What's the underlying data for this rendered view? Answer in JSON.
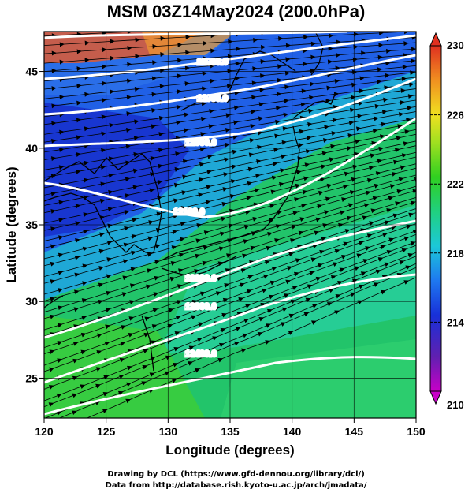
{
  "title": "MSM 03Z14May2024 (200.0hPa)",
  "credits": {
    "line1": "Drawing by DCL (https://www.gfd-dennou.org/library/dcl/)",
    "line2": "Data from http://database.rish.kyoto-u.ac.jp/arch/jmadata/"
  },
  "chart_data": {
    "type": "heatmap",
    "xlabel": "Longitude (degrees)",
    "ylabel": "Latitude  (degrees)",
    "xlim": [
      120,
      150
    ],
    "ylim": [
      22.4,
      47.6
    ],
    "x_ticks": [
      120,
      125,
      130,
      135,
      140,
      145,
      150
    ],
    "y_ticks": [
      25,
      30,
      35,
      40,
      45
    ],
    "grid": true,
    "colorbar": {
      "range": [
        210,
        230
      ],
      "tick_labels": [
        "230",
        "226",
        "222",
        "218",
        "214",
        "210"
      ],
      "tick_values": [
        230,
        226,
        222,
        218,
        214,
        210
      ],
      "colors": [
        "#c800c8",
        "#6020b0",
        "#1830d8",
        "#1e78f0",
        "#1cc8d8",
        "#20d080",
        "#30d020",
        "#a0e020",
        "#f0e020",
        "#f09020",
        "#e03020"
      ]
    },
    "contour_labels": [
      "11800.0",
      "11900.0",
      "12000.0",
      "12100.0",
      "12200.0",
      "12300.0",
      "12400.0"
    ],
    "colors": {
      "contour": "#ffffff",
      "streamline": "#000000",
      "coastline": "#000000"
    }
  }
}
